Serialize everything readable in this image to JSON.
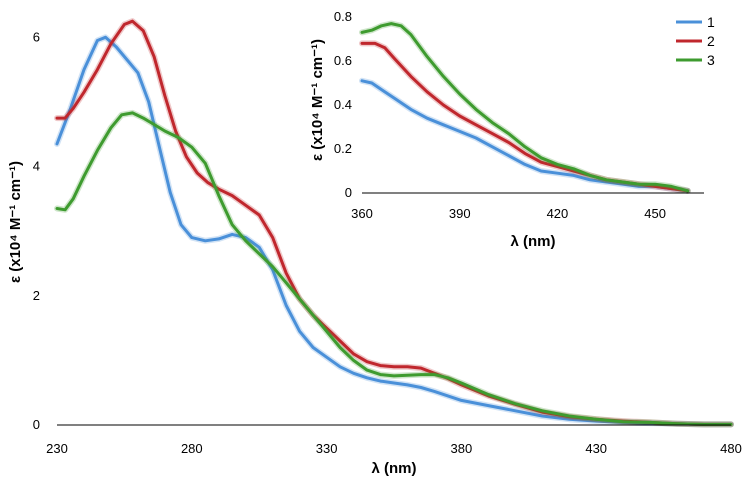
{
  "chart_data": [
    {
      "id": "main",
      "type": "line",
      "title": "",
      "xlabel": "λ (nm)",
      "ylabel": "ε (x10⁴ M⁻¹ cm⁻¹)",
      "xlim": [
        230,
        480
      ],
      "ylim": [
        0,
        6.5
      ],
      "xticks": [
        230,
        280,
        330,
        380,
        430,
        480
      ],
      "yticks": [
        0,
        2,
        4,
        6
      ],
      "grid": false,
      "series": [
        {
          "name": "1",
          "color": "#4a90d9",
          "points": [
            [
              230,
              4.35
            ],
            [
              235,
              4.9
            ],
            [
              240,
              5.5
            ],
            [
              245,
              5.95
            ],
            [
              248,
              6.0
            ],
            [
              252,
              5.85
            ],
            [
              256,
              5.65
            ],
            [
              260,
              5.45
            ],
            [
              264,
              5.0
            ],
            [
              268,
              4.3
            ],
            [
              272,
              3.6
            ],
            [
              276,
              3.1
            ],
            [
              280,
              2.9
            ],
            [
              285,
              2.85
            ],
            [
              290,
              2.88
            ],
            [
              295,
              2.95
            ],
            [
              300,
              2.9
            ],
            [
              305,
              2.75
            ],
            [
              310,
              2.4
            ],
            [
              315,
              1.85
            ],
            [
              320,
              1.45
            ],
            [
              325,
              1.2
            ],
            [
              330,
              1.05
            ],
            [
              335,
              0.9
            ],
            [
              340,
              0.8
            ],
            [
              345,
              0.73
            ],
            [
              350,
              0.68
            ],
            [
              355,
              0.65
            ],
            [
              360,
              0.62
            ],
            [
              365,
              0.58
            ],
            [
              370,
              0.52
            ],
            [
              375,
              0.45
            ],
            [
              380,
              0.38
            ],
            [
              390,
              0.3
            ],
            [
              400,
              0.22
            ],
            [
              410,
              0.14
            ],
            [
              420,
              0.09
            ],
            [
              430,
              0.06
            ],
            [
              440,
              0.04
            ],
            [
              450,
              0.03
            ],
            [
              460,
              0.02
            ],
            [
              470,
              0.01
            ],
            [
              480,
              0.01
            ]
          ]
        },
        {
          "name": "2",
          "color": "#c0272d",
          "points": [
            [
              230,
              4.75
            ],
            [
              233,
              4.75
            ],
            [
              236,
              4.9
            ],
            [
              240,
              5.15
            ],
            [
              245,
              5.5
            ],
            [
              250,
              5.9
            ],
            [
              255,
              6.2
            ],
            [
              258,
              6.25
            ],
            [
              262,
              6.1
            ],
            [
              266,
              5.7
            ],
            [
              270,
              5.1
            ],
            [
              274,
              4.55
            ],
            [
              278,
              4.15
            ],
            [
              282,
              3.9
            ],
            [
              286,
              3.75
            ],
            [
              290,
              3.65
            ],
            [
              295,
              3.55
            ],
            [
              300,
              3.4
            ],
            [
              305,
              3.25
            ],
            [
              310,
              2.9
            ],
            [
              315,
              2.35
            ],
            [
              320,
              1.95
            ],
            [
              325,
              1.7
            ],
            [
              330,
              1.5
            ],
            [
              335,
              1.3
            ],
            [
              340,
              1.1
            ],
            [
              345,
              0.98
            ],
            [
              350,
              0.92
            ],
            [
              355,
              0.9
            ],
            [
              360,
              0.9
            ],
            [
              365,
              0.88
            ],
            [
              370,
              0.8
            ],
            [
              375,
              0.72
            ],
            [
              380,
              0.62
            ],
            [
              390,
              0.45
            ],
            [
              400,
              0.32
            ],
            [
              410,
              0.2
            ],
            [
              420,
              0.13
            ],
            [
              430,
              0.09
            ],
            [
              440,
              0.06
            ],
            [
              450,
              0.04
            ],
            [
              460,
              0.02
            ],
            [
              470,
              0.01
            ],
            [
              480,
              0.01
            ]
          ]
        },
        {
          "name": "3",
          "color": "#3e9b2f",
          "points": [
            [
              230,
              3.35
            ],
            [
              233,
              3.33
            ],
            [
              236,
              3.5
            ],
            [
              240,
              3.85
            ],
            [
              245,
              4.25
            ],
            [
              250,
              4.6
            ],
            [
              254,
              4.8
            ],
            [
              258,
              4.83
            ],
            [
              262,
              4.75
            ],
            [
              266,
              4.65
            ],
            [
              270,
              4.55
            ],
            [
              275,
              4.45
            ],
            [
              280,
              4.3
            ],
            [
              285,
              4.05
            ],
            [
              290,
              3.55
            ],
            [
              295,
              3.1
            ],
            [
              300,
              2.85
            ],
            [
              305,
              2.65
            ],
            [
              310,
              2.45
            ],
            [
              315,
              2.2
            ],
            [
              320,
              1.95
            ],
            [
              325,
              1.7
            ],
            [
              330,
              1.45
            ],
            [
              335,
              1.2
            ],
            [
              340,
              1.0
            ],
            [
              345,
              0.85
            ],
            [
              350,
              0.78
            ],
            [
              355,
              0.76
            ],
            [
              360,
              0.77
            ],
            [
              365,
              0.78
            ],
            [
              370,
              0.78
            ],
            [
              375,
              0.73
            ],
            [
              380,
              0.65
            ],
            [
              390,
              0.47
            ],
            [
              400,
              0.33
            ],
            [
              410,
              0.22
            ],
            [
              420,
              0.14
            ],
            [
              430,
              0.09
            ],
            [
              440,
              0.05
            ],
            [
              450,
              0.04
            ],
            [
              460,
              0.02
            ],
            [
              470,
              0.01
            ],
            [
              480,
              0.01
            ]
          ]
        }
      ]
    },
    {
      "id": "inset",
      "type": "line",
      "title": "",
      "xlabel": "λ (nm)",
      "ylabel": "ε (x10⁴ M⁻¹ cm⁻¹)",
      "xlim": [
        360,
        465
      ],
      "ylim": [
        0,
        0.8
      ],
      "xticks": [
        360,
        390,
        420,
        450
      ],
      "yticks": [
        0,
        0.2,
        0.4,
        0.6,
        0.8
      ],
      "grid": false,
      "legend": "top-right",
      "series": [
        {
          "name": "1",
          "color": "#4a90d9",
          "points": [
            [
              360,
              0.51
            ],
            [
              363,
              0.5
            ],
            [
              366,
              0.47
            ],
            [
              370,
              0.43
            ],
            [
              375,
              0.38
            ],
            [
              380,
              0.34
            ],
            [
              385,
              0.31
            ],
            [
              390,
              0.28
            ],
            [
              395,
              0.25
            ],
            [
              400,
              0.21
            ],
            [
              405,
              0.17
            ],
            [
              410,
              0.13
            ],
            [
              415,
              0.1
            ],
            [
              420,
              0.09
            ],
            [
              425,
              0.08
            ],
            [
              430,
              0.06
            ],
            [
              435,
              0.05
            ],
            [
              440,
              0.04
            ],
            [
              445,
              0.03
            ],
            [
              450,
              0.03
            ],
            [
              455,
              0.02
            ],
            [
              460,
              0.01
            ]
          ]
        },
        {
          "name": "2",
          "color": "#c0272d",
          "points": [
            [
              360,
              0.68
            ],
            [
              364,
              0.68
            ],
            [
              367,
              0.66
            ],
            [
              370,
              0.61
            ],
            [
              375,
              0.53
            ],
            [
              380,
              0.46
            ],
            [
              385,
              0.4
            ],
            [
              390,
              0.35
            ],
            [
              395,
              0.31
            ],
            [
              400,
              0.27
            ],
            [
              405,
              0.23
            ],
            [
              410,
              0.18
            ],
            [
              415,
              0.14
            ],
            [
              420,
              0.12
            ],
            [
              425,
              0.1
            ],
            [
              430,
              0.08
            ],
            [
              435,
              0.06
            ],
            [
              440,
              0.05
            ],
            [
              445,
              0.04
            ],
            [
              450,
              0.03
            ],
            [
              455,
              0.02
            ],
            [
              460,
              0.01
            ]
          ]
        },
        {
          "name": "3",
          "color": "#3e9b2f",
          "points": [
            [
              360,
              0.73
            ],
            [
              363,
              0.74
            ],
            [
              366,
              0.76
            ],
            [
              369,
              0.77
            ],
            [
              372,
              0.76
            ],
            [
              375,
              0.72
            ],
            [
              380,
              0.62
            ],
            [
              385,
              0.53
            ],
            [
              390,
              0.45
            ],
            [
              395,
              0.38
            ],
            [
              400,
              0.32
            ],
            [
              405,
              0.27
            ],
            [
              410,
              0.21
            ],
            [
              415,
              0.16
            ],
            [
              420,
              0.13
            ],
            [
              425,
              0.11
            ],
            [
              430,
              0.08
            ],
            [
              435,
              0.06
            ],
            [
              440,
              0.05
            ],
            [
              445,
              0.04
            ],
            [
              450,
              0.04
            ],
            [
              455,
              0.03
            ],
            [
              460,
              0.01
            ]
          ]
        }
      ]
    }
  ]
}
